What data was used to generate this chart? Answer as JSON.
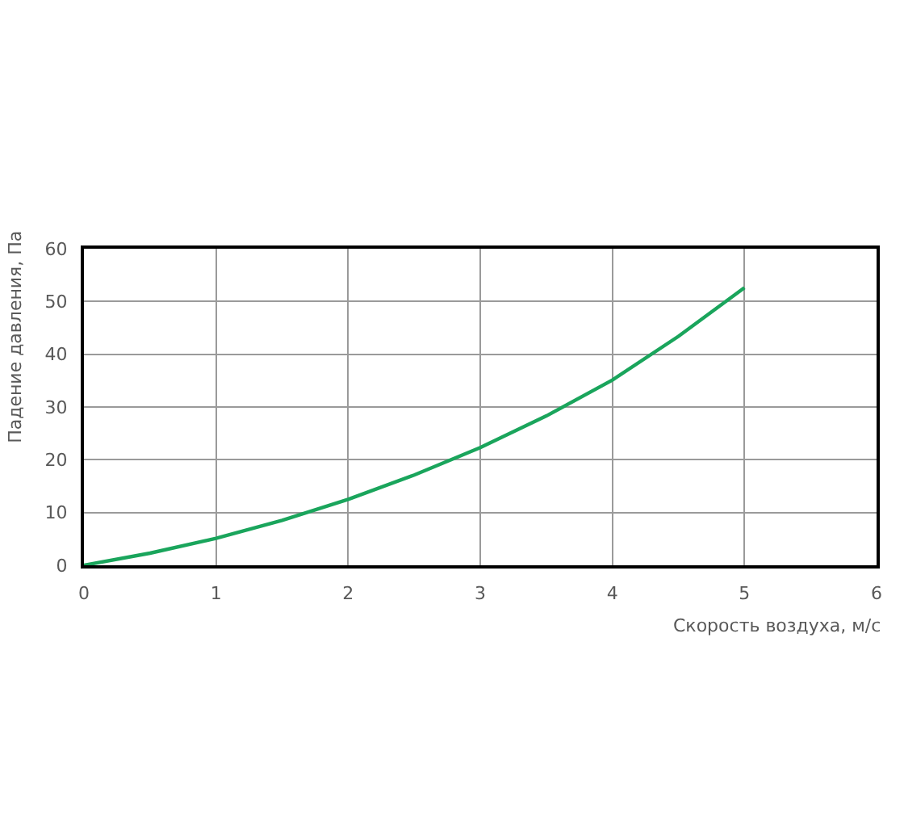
{
  "chart_data": {
    "type": "line",
    "xlabel": "Скорость воздуха, м/с",
    "ylabel": "Падение давления, Па",
    "x": [
      0,
      0.5,
      1,
      1.5,
      2,
      2.5,
      3,
      3.5,
      4,
      4.5,
      5
    ],
    "series": [
      {
        "color": "#1aa55c",
        "values": [
          0,
          2.3,
          5.1,
          8.5,
          12.5,
          17.1,
          22.3,
          28.3,
          35.1,
          43.4,
          52.6
        ]
      }
    ],
    "xlim": [
      0,
      6
    ],
    "xticks": [
      0,
      1,
      2,
      3,
      4,
      5,
      6
    ],
    "ylim": [
      0,
      60
    ],
    "yticks": [
      0,
      10,
      20,
      30,
      40,
      50,
      60
    ],
    "grid": true,
    "marker": "none",
    "line_style": "solid"
  }
}
